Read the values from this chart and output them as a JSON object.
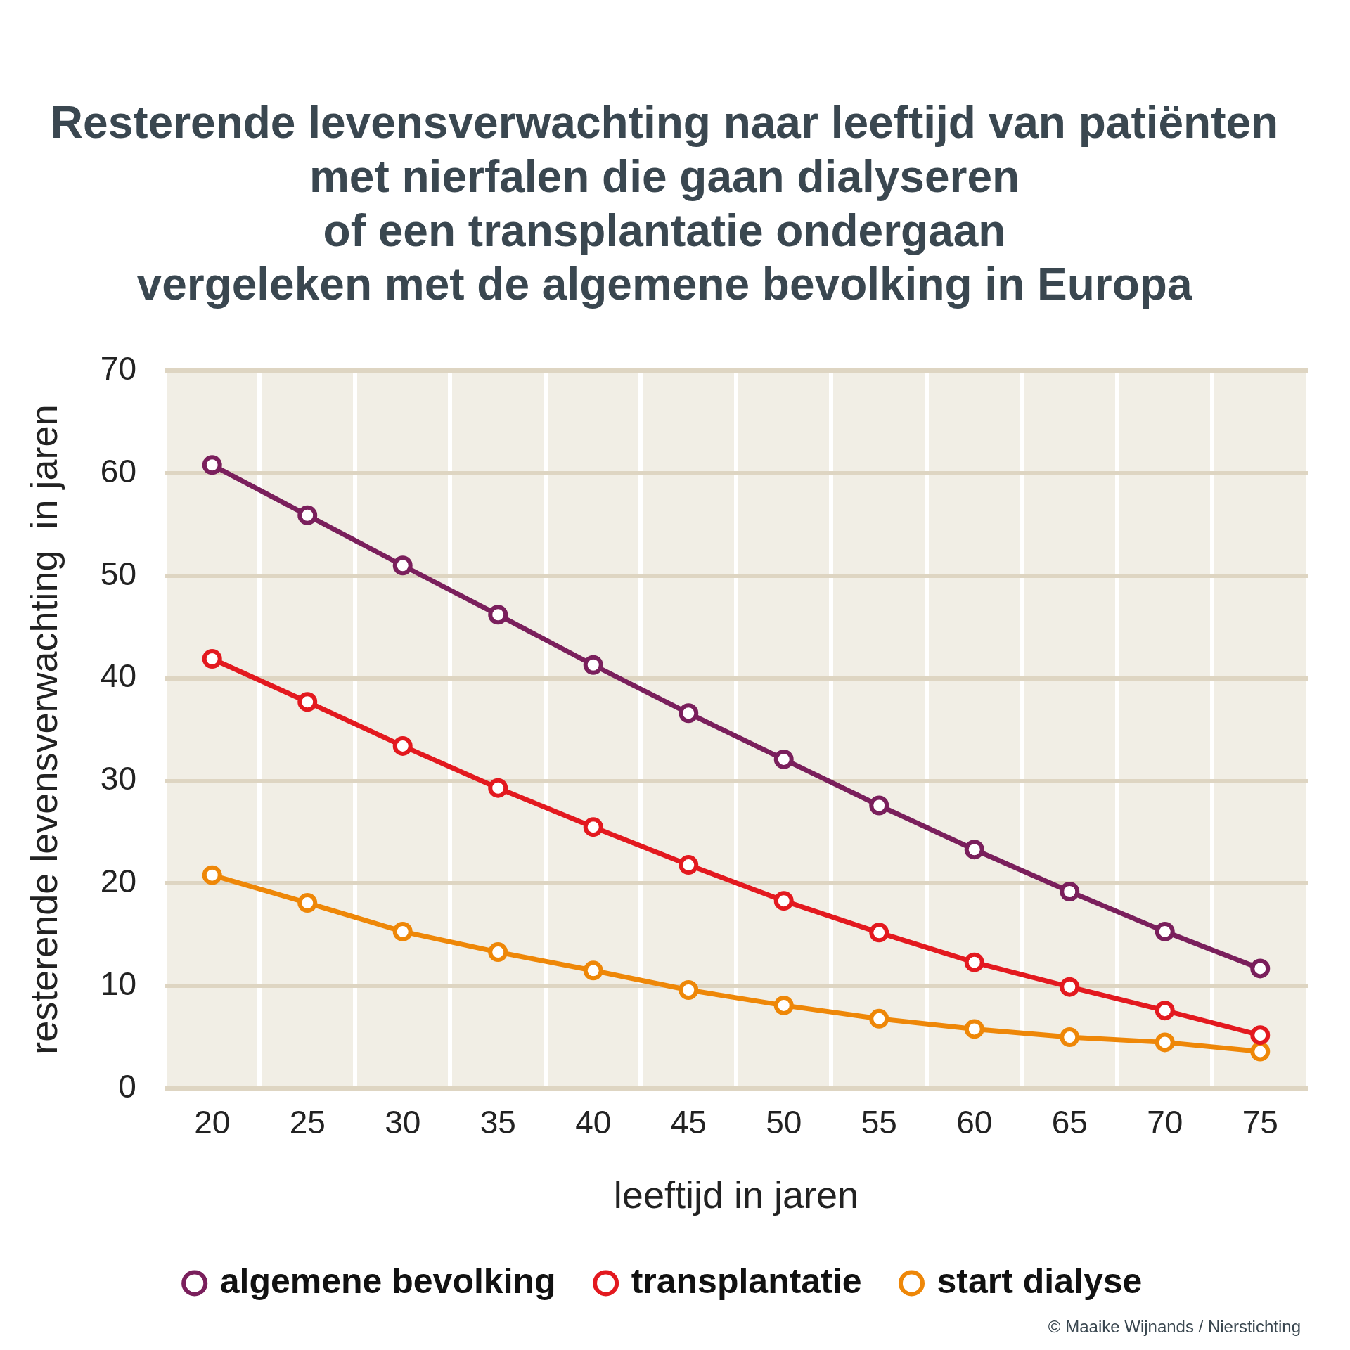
{
  "chart_data": {
    "type": "line",
    "title": "Resterende levensverwachting naar leeftijd van patiënten\nmet nierfalen die gaan dialyseren\nof een transplantatie ondergaan\nvergeleken met de algemene bevolking in Europa",
    "xlabel": "leeftijd in jaren",
    "ylabel": "resterende levensverwachting  in jaren",
    "categories": [
      "20",
      "25",
      "30",
      "35",
      "40",
      "45",
      "50",
      "55",
      "60",
      "65",
      "70",
      "75"
    ],
    "series": [
      {
        "name": "algemene bevolking",
        "color": "#7a1f5c",
        "values": [
          60.8,
          55.9,
          51.0,
          46.2,
          41.3,
          36.6,
          32.1,
          27.6,
          23.3,
          19.2,
          15.3,
          11.7
        ]
      },
      {
        "name": "transplantatie",
        "color": "#e3191f",
        "values": [
          41.9,
          37.7,
          33.4,
          29.3,
          25.5,
          21.8,
          18.3,
          15.2,
          12.3,
          9.9,
          7.6,
          5.2
        ]
      },
      {
        "name": "start dialyse",
        "color": "#ee8708",
        "values": [
          20.8,
          18.1,
          15.3,
          13.3,
          11.5,
          9.6,
          8.1,
          6.8,
          5.8,
          5.0,
          4.5,
          3.6
        ]
      }
    ],
    "ylim": [
      0,
      70
    ],
    "yticks": [
      0,
      10,
      20,
      30,
      40,
      50,
      60,
      70
    ],
    "grid": true,
    "legend": "bottom",
    "marker": "circle",
    "line_style": "solid",
    "annotations": [
      "© Maaike Wijnands / Nierstichting"
    ]
  }
}
